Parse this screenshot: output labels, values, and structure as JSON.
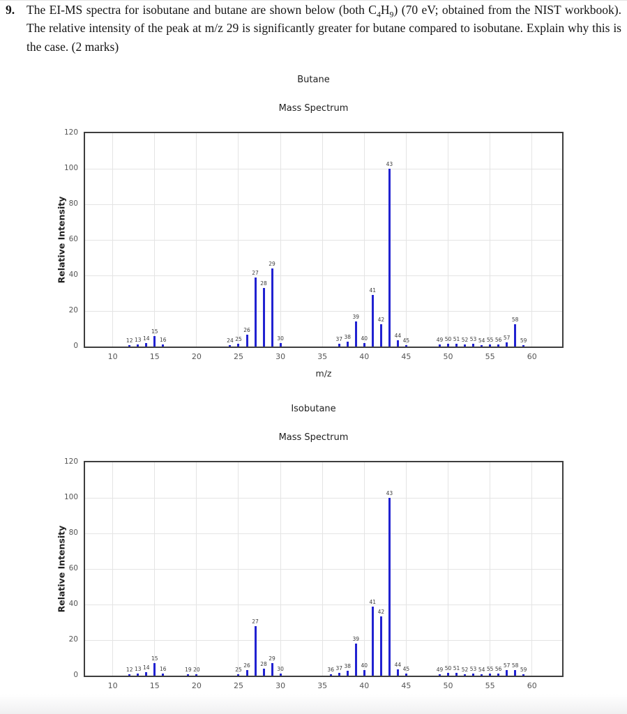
{
  "question": {
    "number": "9.",
    "part1": "The EI-MS spectra for isobutane and butane are shown below (both C",
    "sub1": "4",
    "part2": "H",
    "sub2": "9",
    "part3": ") (70 eV; obtained from the NIST workbook). The relative intensity of the peak at m/z 29 is significantly greater for butane compared to isobutane. Explain why this is the case. (2 marks)"
  },
  "chart_data": [
    {
      "type": "bar",
      "title": "Butane",
      "subtitle": "Mass Spectrum",
      "xlabel": "m/z",
      "ylabel": "Relative Intensity",
      "xlim": [
        6.7,
        63.6
      ],
      "ylim": [
        0,
        120
      ],
      "xticks": [
        10,
        15,
        20,
        25,
        30,
        35,
        40,
        45,
        50,
        55,
        60
      ],
      "yticks": [
        0,
        20,
        40,
        60,
        80,
        100,
        120
      ],
      "grid": true,
      "legend": false,
      "bar_color": "#2122d1",
      "labels_above_bars": true,
      "x": [
        12,
        13,
        14,
        15,
        16,
        24,
        25,
        26,
        27,
        28,
        29,
        30,
        37,
        38,
        39,
        40,
        41,
        42,
        43,
        44,
        45,
        49,
        50,
        51,
        52,
        53,
        54,
        55,
        56,
        57,
        58,
        59
      ],
      "values": [
        0.7,
        1.0,
        2.0,
        6.0,
        1.0,
        0.8,
        1.4,
        6.5,
        39,
        33,
        44,
        2.0,
        1.5,
        2.8,
        14,
        2.0,
        29,
        12.5,
        100,
        3.5,
        0.8,
        1.0,
        1.5,
        1.5,
        1.0,
        1.4,
        0.7,
        1.0,
        1.2,
        2.5,
        12.5,
        0.8
      ]
    },
    {
      "type": "bar",
      "title": "Isobutane",
      "subtitle": "Mass Spectrum",
      "xlabel": "m/z",
      "ylabel": "Relative Intensity",
      "xlim": [
        6.7,
        63.6
      ],
      "ylim": [
        0,
        120
      ],
      "xticks": [
        10,
        15,
        20,
        25,
        30,
        35,
        40,
        45,
        50,
        55,
        60
      ],
      "yticks": [
        0,
        20,
        40,
        60,
        80,
        100,
        120
      ],
      "grid": true,
      "legend": false,
      "bar_color": "#2122d1",
      "labels_above_bars": true,
      "x": [
        12,
        13,
        14,
        15,
        16,
        19,
        20,
        25,
        26,
        27,
        28,
        29,
        30,
        36,
        37,
        38,
        39,
        40,
        41,
        42,
        43,
        44,
        45,
        49,
        50,
        51,
        52,
        53,
        54,
        55,
        56,
        57,
        58,
        59
      ],
      "values": [
        0.7,
        1.0,
        2.0,
        7.0,
        1.0,
        0.8,
        0.8,
        0.8,
        3.0,
        28,
        3.8,
        7.0,
        1.0,
        0.7,
        1.5,
        2.8,
        18,
        3.0,
        39,
        33.5,
        100,
        3.5,
        1.0,
        0.8,
        1.4,
        1.4,
        0.9,
        1.3,
        0.8,
        1.0,
        1.0,
        3.3,
        3.0,
        0.7
      ]
    }
  ]
}
